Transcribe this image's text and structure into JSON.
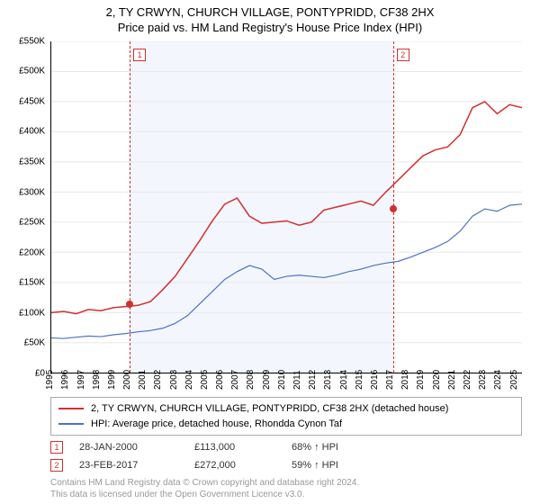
{
  "title_line1": "2, TY CRWYN, CHURCH VILLAGE, PONTYPRIDD, CF38 2HX",
  "title_line2": "Price paid vs. HM Land Registry's House Price Index (HPI)",
  "chart": {
    "type": "line",
    "background_color": "#ffffff",
    "grid_color": "#e8e8e8",
    "shade_color": "rgba(100,150,230,0.08)",
    "axis_color": "#000000",
    "x_years": [
      "1995",
      "1996",
      "1997",
      "1998",
      "1999",
      "2000",
      "2001",
      "2002",
      "2003",
      "2004",
      "2005",
      "2006",
      "2007",
      "2008",
      "2009",
      "2010",
      "2011",
      "2012",
      "2013",
      "2014",
      "2015",
      "2016",
      "2017",
      "2018",
      "2019",
      "2020",
      "2021",
      "2022",
      "2023",
      "2024",
      "2025"
    ],
    "x_index_range": [
      0,
      30.5
    ],
    "y_ticks": [
      0,
      50,
      100,
      150,
      200,
      250,
      300,
      350,
      400,
      450,
      500,
      550
    ],
    "y_tick_labels": [
      "£0",
      "£50K",
      "£100K",
      "£150K",
      "£200K",
      "£250K",
      "£300K",
      "£350K",
      "£400K",
      "£450K",
      "£500K",
      "£550K"
    ],
    "ylim": [
      0,
      550
    ],
    "series": [
      {
        "name": "price_paid",
        "color": "#d32f2f",
        "line_width": 1.5,
        "values_k": [
          100,
          102,
          98,
          105,
          103,
          108,
          110,
          112,
          118,
          138,
          160,
          190,
          220,
          252,
          280,
          290,
          260,
          248,
          250,
          252,
          245,
          250,
          270,
          275,
          280,
          285,
          278,
          300,
          320,
          340,
          360,
          370,
          375,
          395,
          440,
          450,
          430,
          445,
          440
        ]
      },
      {
        "name": "hpi",
        "color": "#4a73c4",
        "line_width": 1.2,
        "values_k": [
          58,
          57,
          59,
          61,
          60,
          63,
          65,
          68,
          70,
          74,
          82,
          95,
          115,
          135,
          155,
          168,
          178,
          172,
          155,
          160,
          162,
          160,
          158,
          162,
          168,
          172,
          178,
          182,
          185,
          192,
          200,
          208,
          218,
          235,
          260,
          272,
          268,
          278,
          280
        ]
      }
    ],
    "transactions": [
      {
        "label": "1",
        "x_year_frac": 5.08,
        "y_k": 113,
        "dot_color": "#d32f2f"
      },
      {
        "label": "2",
        "x_year_frac": 22.15,
        "y_k": 272,
        "dot_color": "#d32f2f"
      }
    ],
    "dash_color": "#d32f2f",
    "label_fontsize": 10
  },
  "legend": {
    "items": [
      {
        "color": "#d32f2f",
        "text": "2, TY CRWYN, CHURCH VILLAGE, PONTYPRIDD, CF38 2HX (detached house)"
      },
      {
        "color": "#4a73c4",
        "text": "HPI: Average price, detached house, Rhondda Cynon Taf"
      }
    ]
  },
  "events": [
    {
      "num": "1",
      "date": "28-JAN-2000",
      "price": "£113,000",
      "hpi": "68% ↑ HPI"
    },
    {
      "num": "2",
      "date": "23-FEB-2017",
      "price": "£272,000",
      "hpi": "59% ↑ HPI"
    }
  ],
  "footer_line1": "Contains HM Land Registry data © Crown copyright and database right 2024.",
  "footer_line2": "This data is licensed under the Open Government Licence v3.0."
}
